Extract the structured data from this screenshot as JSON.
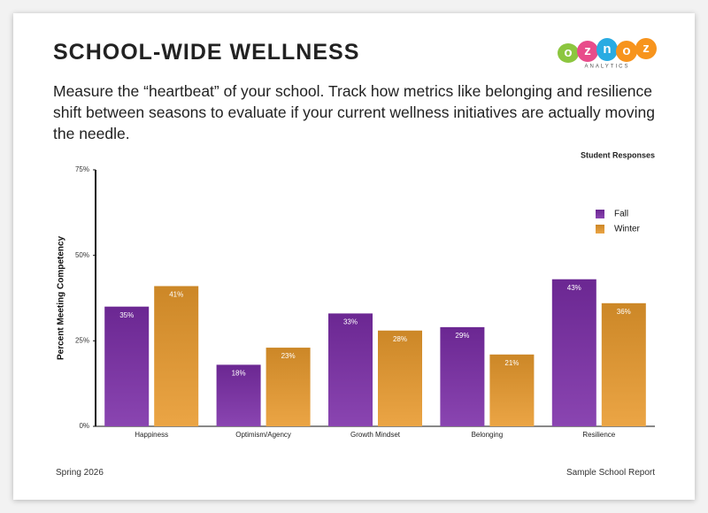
{
  "header": {
    "title": "SCHOOL-WIDE WELLNESS",
    "description": "Measure the “heartbeat” of your school. Track how metrics like belonging and resilience shift between seasons to evaluate if your current wellness initiatives are actually moving the needle."
  },
  "logo": {
    "letters": [
      "o",
      "z",
      "n",
      "o",
      "z"
    ],
    "tagline": "ANALYTICS"
  },
  "chart_data": {
    "type": "bar",
    "title": "Student Responses",
    "y_label": "Percent Meeting Competency",
    "categories": [
      "Happiness",
      "Optimism/Agency",
      "Growth Mindset",
      "Belonging",
      "Resilience"
    ],
    "series": [
      {
        "name": "Fall",
        "color": "#7a2ca6",
        "values": [
          35,
          18,
          33,
          29,
          43
        ],
        "value_labels": [
          "35%",
          "18%",
          "33%",
          "29%",
          "43%"
        ]
      },
      {
        "name": "Winter",
        "color": "#e8992c",
        "values": [
          41,
          23,
          28,
          21,
          36
        ],
        "value_labels": [
          "41%",
          "23%",
          "28%",
          "21%",
          "36%"
        ]
      }
    ],
    "ylim": [
      0,
      75
    ],
    "yticks": [
      {
        "value": 0,
        "label": "0%"
      },
      {
        "value": 25,
        "label": "25%"
      },
      {
        "value": 50,
        "label": "50%"
      },
      {
        "value": 75,
        "label": "75%"
      }
    ],
    "legend": "upper-right",
    "grid": false
  },
  "footer": {
    "left": "Spring 2026",
    "right": "Sample School Report"
  }
}
